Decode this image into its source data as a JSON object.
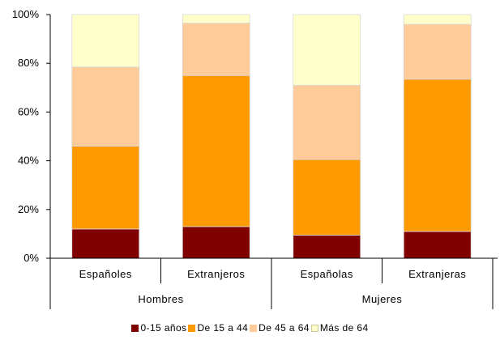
{
  "chart_data": {
    "type": "bar",
    "stacked": true,
    "percent": true,
    "categories": [
      "Españoles",
      "Extranjeros",
      "Españolas",
      "Extranjeras"
    ],
    "groups": [
      {
        "label": "Hombres",
        "categories": [
          "Españoles",
          "Extranjeros"
        ]
      },
      {
        "label": "Mujeres",
        "categories": [
          "Españolas",
          "Extranjeras"
        ]
      }
    ],
    "series": [
      {
        "name": "0-15 años",
        "color": "#800000",
        "values": [
          12,
          13,
          9.5,
          11
        ]
      },
      {
        "name": "De 15 a 44",
        "color": "#FF9900",
        "values": [
          34,
          62,
          31,
          62.5
        ]
      },
      {
        "name": "De 45 a 64",
        "color": "#FFCC99",
        "values": [
          32.5,
          21.5,
          30.5,
          22.5
        ]
      },
      {
        "name": "Más de 64",
        "color": "#FFFFCC",
        "values": [
          21.5,
          3.5,
          29,
          4
        ]
      }
    ],
    "ylim": [
      0,
      100
    ],
    "yticks": [
      0,
      20,
      40,
      60,
      80,
      100
    ],
    "ytick_labels": [
      "0%",
      "20%",
      "40%",
      "60%",
      "80%",
      "100%"
    ],
    "xlabel": "",
    "ylabel": "",
    "title": "",
    "grid": false,
    "legend_position": "bottom"
  }
}
